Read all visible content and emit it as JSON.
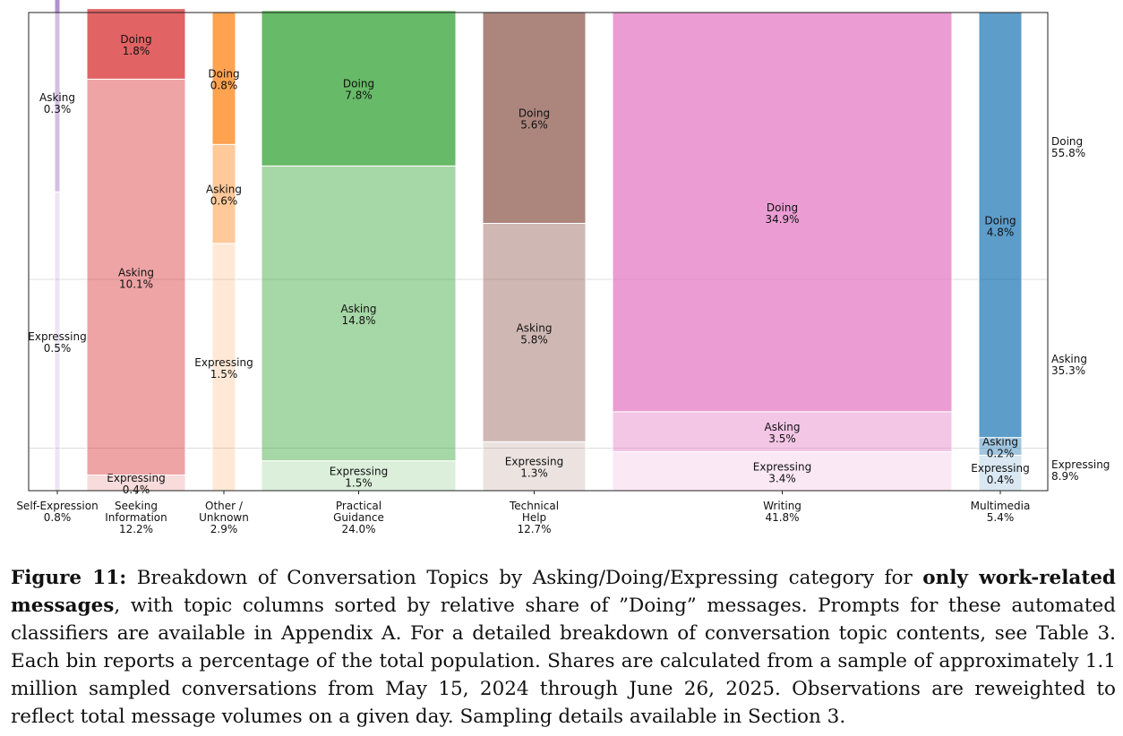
{
  "chart_data": {
    "type": "mosaic",
    "categories": [
      "Self-Expression",
      "Seeking Information",
      "Other / Unknown",
      "Practical Guidance",
      "Technical Help",
      "Writing",
      "Multimedia"
    ],
    "x_labels": [
      [
        "Self-Expression",
        "0.8%"
      ],
      [
        "Seeking",
        "Information",
        "12.2%"
      ],
      [
        "Other /",
        "Unknown",
        "2.9%"
      ],
      [
        "Practical",
        "Guidance",
        "24.0%"
      ],
      [
        "Technical",
        "Help",
        "12.7%"
      ],
      [
        "Writing",
        "41.8%"
      ],
      [
        "Multimedia",
        "5.4%"
      ]
    ],
    "column_totals": [
      0.8,
      12.2,
      2.9,
      24.0,
      12.7,
      41.8,
      5.4
    ],
    "series": [
      {
        "name": "Doing",
        "values": [
          0.1,
          1.8,
          0.8,
          7.8,
          5.6,
          34.9,
          4.8
        ]
      },
      {
        "name": "Asking",
        "values": [
          0.3,
          10.1,
          0.6,
          14.8,
          5.8,
          3.5,
          0.2
        ]
      },
      {
        "name": "Expressing",
        "values": [
          0.5,
          0.4,
          1.5,
          1.5,
          1.3,
          3.4,
          0.4
        ]
      }
    ],
    "column_colors": [
      "#9467bd",
      "#d62728",
      "#ff7f0e",
      "#2ca02c",
      "#8c564b",
      "#e377c2",
      "#1f77b4"
    ],
    "totals_right": [
      {
        "name": "Doing",
        "value": "55.8%"
      },
      {
        "name": "Asking",
        "value": "35.3%"
      },
      {
        "name": "Expressing",
        "value": "8.9%"
      }
    ],
    "horizontal_gridlines_at_fraction": [
      0.442,
      0.089
    ],
    "legend": "right-side totals"
  },
  "caption": {
    "label": "Figure 11:",
    "text_a": "Breakdown of Conversation Topics by Asking/Doing/Expressing category for",
    "text_bold": "only work-related messages",
    "text_b": ", with topic columns sorted by relative share of ”Doing” messages. Prompts for these automated classifiers are available in Appendix A. For a detailed breakdown of conversation topic contents, see Table 3. Each bin reports a percentage of the total population. Shares are calculated from a sample of approximately 1.1 million sampled conversations from May 15, 2024 through June 26, 2025. Observations are reweighted to reflect total message volumes on a given day. Sampling details available in Section 3."
  }
}
